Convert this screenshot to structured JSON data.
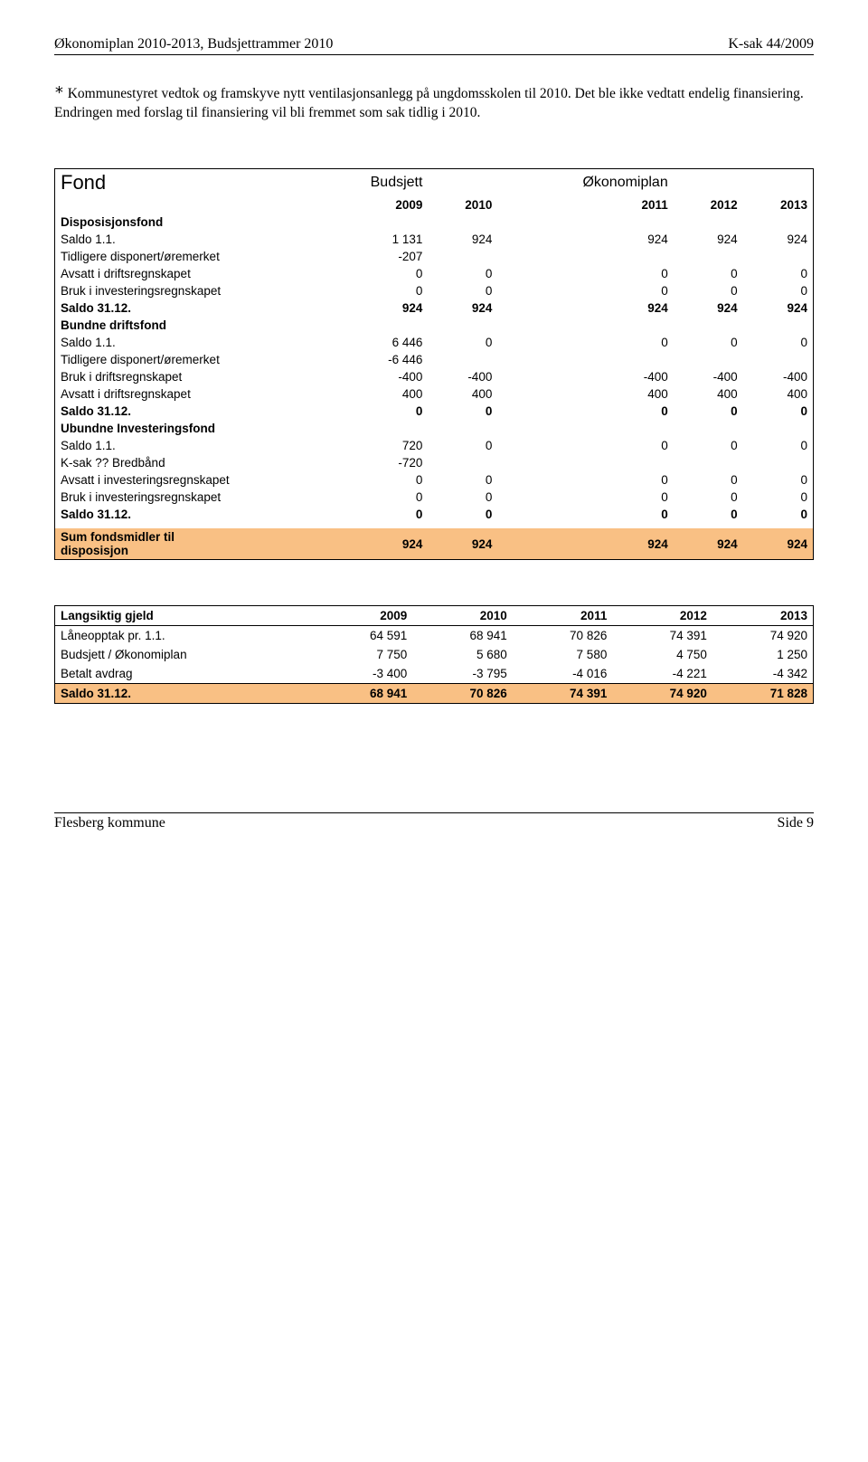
{
  "header": {
    "left": "Økonomiplan 2010-2013, Budsjettrammer 2010",
    "right": "K-sak 44/2009"
  },
  "intro": {
    "asterisk": "*",
    "text": " Kommunestyret vedtok og framskyve nytt ventilasjonsanlegg på ungdomsskolen til 2010. Det ble ikke vedtatt endelig finansiering. Endringen med forslag til finansiering vil bli fremmet som sak tidlig i 2010."
  },
  "fund": {
    "title": "Fond",
    "col1": "Budsjett",
    "col2": "Økonomiplan",
    "years": [
      "2009",
      "2010",
      "2011",
      "2012",
      "2013"
    ],
    "sections": [
      {
        "header": "Disposisjonsfond",
        "rows": [
          {
            "label": "Saldo 1.1.",
            "vals": [
              "1 131",
              "924",
              "924",
              "924",
              "924"
            ]
          },
          {
            "label": "Tidligere disponert/øremerket",
            "vals": [
              "-207",
              "",
              "",
              "",
              ""
            ]
          },
          {
            "label": "Avsatt i driftsregnskapet",
            "vals": [
              "0",
              "0",
              "0",
              "0",
              "0"
            ]
          },
          {
            "label": "Bruk i investeringsregnskapet",
            "vals": [
              "0",
              "0",
              "0",
              "0",
              "0"
            ]
          }
        ],
        "saldo": {
          "label": "Saldo 31.12.",
          "vals": [
            "924",
            "924",
            "924",
            "924",
            "924"
          ]
        }
      },
      {
        "header": "Bundne driftsfond",
        "rows": [
          {
            "label": "Saldo 1.1.",
            "vals": [
              "6 446",
              "0",
              "0",
              "0",
              "0"
            ]
          },
          {
            "label": "Tidligere disponert/øremerket",
            "vals": [
              "-6 446",
              "",
              "",
              "",
              ""
            ]
          },
          {
            "label": "Bruk i driftsregnskapet",
            "vals": [
              "-400",
              "-400",
              "-400",
              "-400",
              "-400"
            ]
          },
          {
            "label": "Avsatt i driftsregnskapet",
            "vals": [
              "400",
              "400",
              "400",
              "400",
              "400"
            ]
          }
        ],
        "saldo": {
          "label": "Saldo 31.12.",
          "vals": [
            "0",
            "0",
            "0",
            "0",
            "0"
          ]
        }
      },
      {
        "header": "Ubundne Investeringsfond",
        "rows": [
          {
            "label": "Saldo 1.1.",
            "vals": [
              "720",
              "0",
              "0",
              "0",
              "0"
            ]
          },
          {
            "label": "K-sak ?? Bredbånd",
            "vals": [
              "-720",
              "",
              "",
              "",
              ""
            ]
          },
          {
            "label": "Avsatt i investeringsregnskapet",
            "vals": [
              "0",
              "0",
              "0",
              "0",
              "0"
            ]
          },
          {
            "label": "Bruk i investeringsregnskapet",
            "vals": [
              "0",
              "0",
              "0",
              "0",
              "0"
            ]
          }
        ],
        "saldo": {
          "label": "Saldo 31.12.",
          "vals": [
            "0",
            "0",
            "0",
            "0",
            "0"
          ]
        }
      }
    ],
    "sum": {
      "label1": "Sum fondsmidler til",
      "label2": "disposisjon",
      "vals": [
        "924",
        "924",
        "924",
        "924",
        "924"
      ]
    }
  },
  "gjeld": {
    "header": "Langsiktig gjeld",
    "years": [
      "2009",
      "2010",
      "2011",
      "2012",
      "2013"
    ],
    "rows": [
      {
        "label": "Låneopptak pr. 1.1.",
        "vals": [
          "64 591",
          "68 941",
          "70 826",
          "74 391",
          "74 920"
        ]
      },
      {
        "label": "Budsjett / Økonomiplan",
        "vals": [
          "7 750",
          "5 680",
          "7 580",
          "4 750",
          "1 250"
        ]
      },
      {
        "label": "Betalt avdrag",
        "vals": [
          "-3 400",
          "-3 795",
          "-4 016",
          "-4 221",
          "-4 342"
        ]
      }
    ],
    "saldo": {
      "label": "Saldo 31.12.",
      "vals": [
        "68 941",
        "70 826",
        "74 391",
        "74 920",
        "71 828"
      ]
    }
  },
  "footer": {
    "left": "Flesberg kommune",
    "right": "Side 9"
  },
  "colors": {
    "highlight": "#f9c084",
    "text": "#000000",
    "background": "#ffffff"
  }
}
